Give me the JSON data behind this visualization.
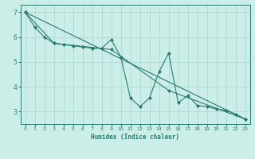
{
  "bg_color": "#cceee8",
  "grid_color": "#aad4ce",
  "line_color": "#2a7a6e",
  "xlabel": "Humidex (Indice chaleur)",
  "xlim": [
    -0.5,
    23.5
  ],
  "ylim": [
    2.5,
    7.3
  ],
  "yticks": [
    3,
    4,
    5,
    6,
    7
  ],
  "xticks": [
    0,
    1,
    2,
    3,
    4,
    5,
    6,
    7,
    8,
    9,
    10,
    11,
    12,
    13,
    14,
    15,
    16,
    17,
    18,
    19,
    20,
    21,
    22,
    23
  ],
  "series": [
    {
      "x": [
        0,
        1,
        2,
        3,
        4,
        5,
        6,
        7,
        8,
        9,
        10,
        11,
        12,
        13,
        14,
        15,
        16,
        17,
        18,
        19,
        20,
        21,
        22,
        23
      ],
      "y": [
        7.0,
        6.4,
        6.0,
        5.75,
        5.7,
        5.65,
        5.6,
        5.55,
        5.55,
        5.9,
        5.2,
        3.55,
        3.2,
        3.55,
        4.6,
        5.35,
        3.35,
        3.65,
        3.25,
        3.2,
        3.1,
        3.05,
        2.9,
        2.7
      ],
      "marker": "D",
      "markersize": 2.0
    },
    {
      "x": [
        0,
        3,
        9,
        15,
        23
      ],
      "y": [
        7.0,
        5.75,
        5.5,
        3.85,
        2.7
      ],
      "marker": "D",
      "markersize": 2.0
    },
    {
      "x": [
        0,
        23
      ],
      "y": [
        7.0,
        2.7
      ],
      "marker": null,
      "markersize": null
    }
  ]
}
